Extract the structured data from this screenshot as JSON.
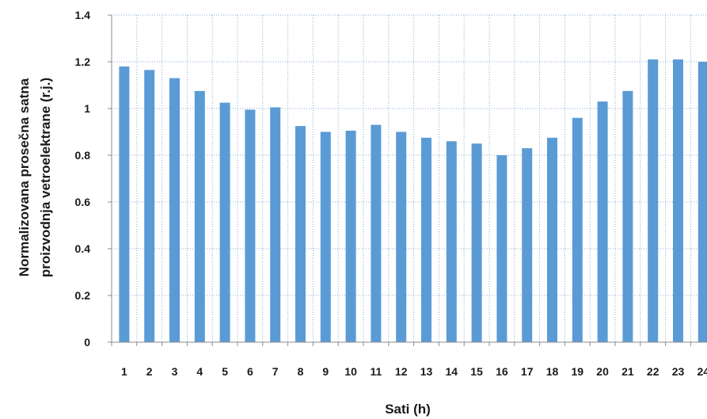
{
  "colors": {
    "bar": "#5b9bd5",
    "grid": "#8aaed6",
    "axis": "#8c8c8c"
  },
  "chart_data": {
    "type": "bar",
    "categories": [
      "1",
      "2",
      "3",
      "4",
      "5",
      "6",
      "7",
      "8",
      "9",
      "10",
      "11",
      "12",
      "13",
      "14",
      "15",
      "16",
      "17",
      "18",
      "19",
      "20",
      "21",
      "22",
      "23",
      "24"
    ],
    "values": [
      1.18,
      1.165,
      1.13,
      1.075,
      1.025,
      0.995,
      1.005,
      0.925,
      0.9,
      0.905,
      0.93,
      0.9,
      0.875,
      0.86,
      0.85,
      0.8,
      0.83,
      0.875,
      0.96,
      1.03,
      1.075,
      1.21,
      1.21,
      1.2
    ],
    "yticks": [
      "0",
      "0.2",
      "0.4",
      "0.6",
      "0.8",
      "1",
      "1.2",
      "1.4"
    ],
    "ylim": [
      0,
      1.4
    ],
    "xlabel": "Sati (h)",
    "ylabel_lines": [
      "Normalizovana prosečna satna",
      "proizvodnja vetroelektrane (r.j.)"
    ],
    "grid": "both-dotted",
    "legend": "none"
  }
}
